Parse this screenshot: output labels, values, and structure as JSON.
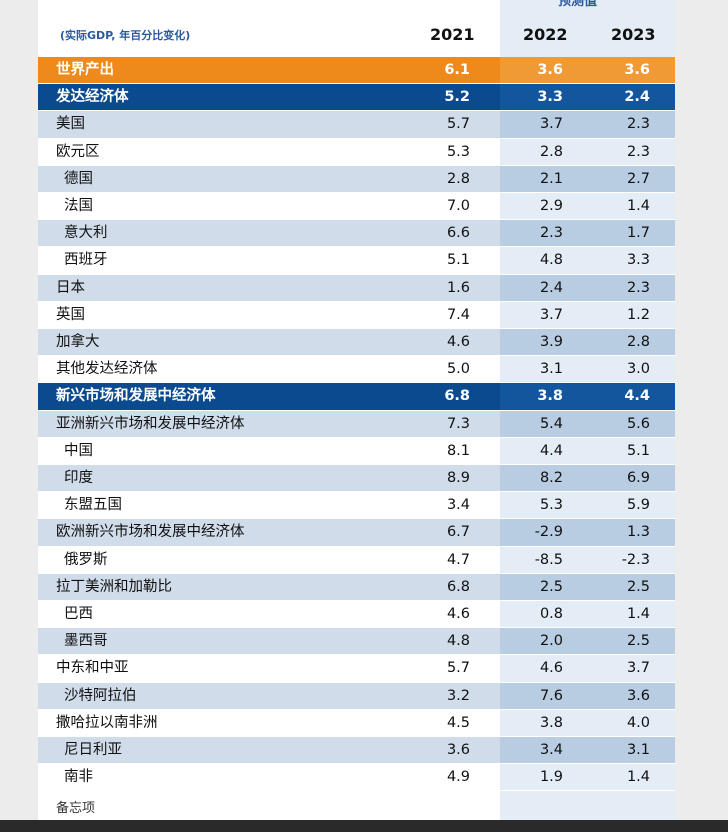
{
  "header": {
    "projection": "预测值",
    "note": "(实际GDP, 年百分比变化)",
    "columns": [
      "2021",
      "2022",
      "2023"
    ]
  },
  "rows": [
    {
      "label": "世界产出",
      "values": [
        "6.1",
        "3.6",
        "3.6"
      ]
    },
    {
      "label": "发达经济体",
      "values": [
        "5.2",
        "3.3",
        "2.4"
      ]
    },
    {
      "label": "美国",
      "values": [
        "5.7",
        "3.7",
        "2.3"
      ]
    },
    {
      "label": "欧元区",
      "values": [
        "5.3",
        "2.8",
        "2.3"
      ]
    },
    {
      "label": "德国",
      "values": [
        "2.8",
        "2.1",
        "2.7"
      ]
    },
    {
      "label": "法国",
      "values": [
        "7.0",
        "2.9",
        "1.4"
      ]
    },
    {
      "label": "意大利",
      "values": [
        "6.6",
        "2.3",
        "1.7"
      ]
    },
    {
      "label": "西班牙",
      "values": [
        "5.1",
        "4.8",
        "3.3"
      ]
    },
    {
      "label": "日本",
      "values": [
        "1.6",
        "2.4",
        "2.3"
      ]
    },
    {
      "label": "英国",
      "values": [
        "7.4",
        "3.7",
        "1.2"
      ]
    },
    {
      "label": "加拿大",
      "values": [
        "4.6",
        "3.9",
        "2.8"
      ]
    },
    {
      "label": "其他发达经济体",
      "values": [
        "5.0",
        "3.1",
        "3.0"
      ]
    },
    {
      "label": "新兴市场和发展中经济体",
      "values": [
        "6.8",
        "3.8",
        "4.4"
      ]
    },
    {
      "label": "亚洲新兴市场和发展中经济体",
      "values": [
        "7.3",
        "5.4",
        "5.6"
      ]
    },
    {
      "label": "中国",
      "values": [
        "8.1",
        "4.4",
        "5.1"
      ]
    },
    {
      "label": "印度",
      "values": [
        "8.9",
        "8.2",
        "6.9"
      ]
    },
    {
      "label": "东盟五国",
      "values": [
        "3.4",
        "5.3",
        "5.9"
      ]
    },
    {
      "label": "欧洲新兴市场和发展中经济体",
      "values": [
        "6.7",
        "-2.9",
        "1.3"
      ]
    },
    {
      "label": "俄罗斯",
      "values": [
        "4.7",
        "-8.5",
        "-2.3"
      ]
    },
    {
      "label": "拉丁美洲和加勒比",
      "values": [
        "6.8",
        "2.5",
        "2.5"
      ]
    },
    {
      "label": "巴西",
      "values": [
        "4.6",
        "0.8",
        "1.4"
      ]
    },
    {
      "label": "墨西哥",
      "values": [
        "4.8",
        "2.0",
        "2.5"
      ]
    },
    {
      "label": "中东和中亚",
      "values": [
        "5.7",
        "4.6",
        "3.7"
      ]
    },
    {
      "label": "沙特阿拉伯",
      "values": [
        "3.2",
        "7.6",
        "3.6"
      ]
    },
    {
      "label": "撒哈拉以南非洲",
      "values": [
        "4.5",
        "3.8",
        "4.0"
      ]
    },
    {
      "label": "尼日利亚",
      "values": [
        "3.6",
        "3.4",
        "3.1"
      ]
    },
    {
      "label": "南非",
      "values": [
        "4.9",
        "1.9",
        "1.4"
      ]
    }
  ],
  "footer": "备忘项"
}
